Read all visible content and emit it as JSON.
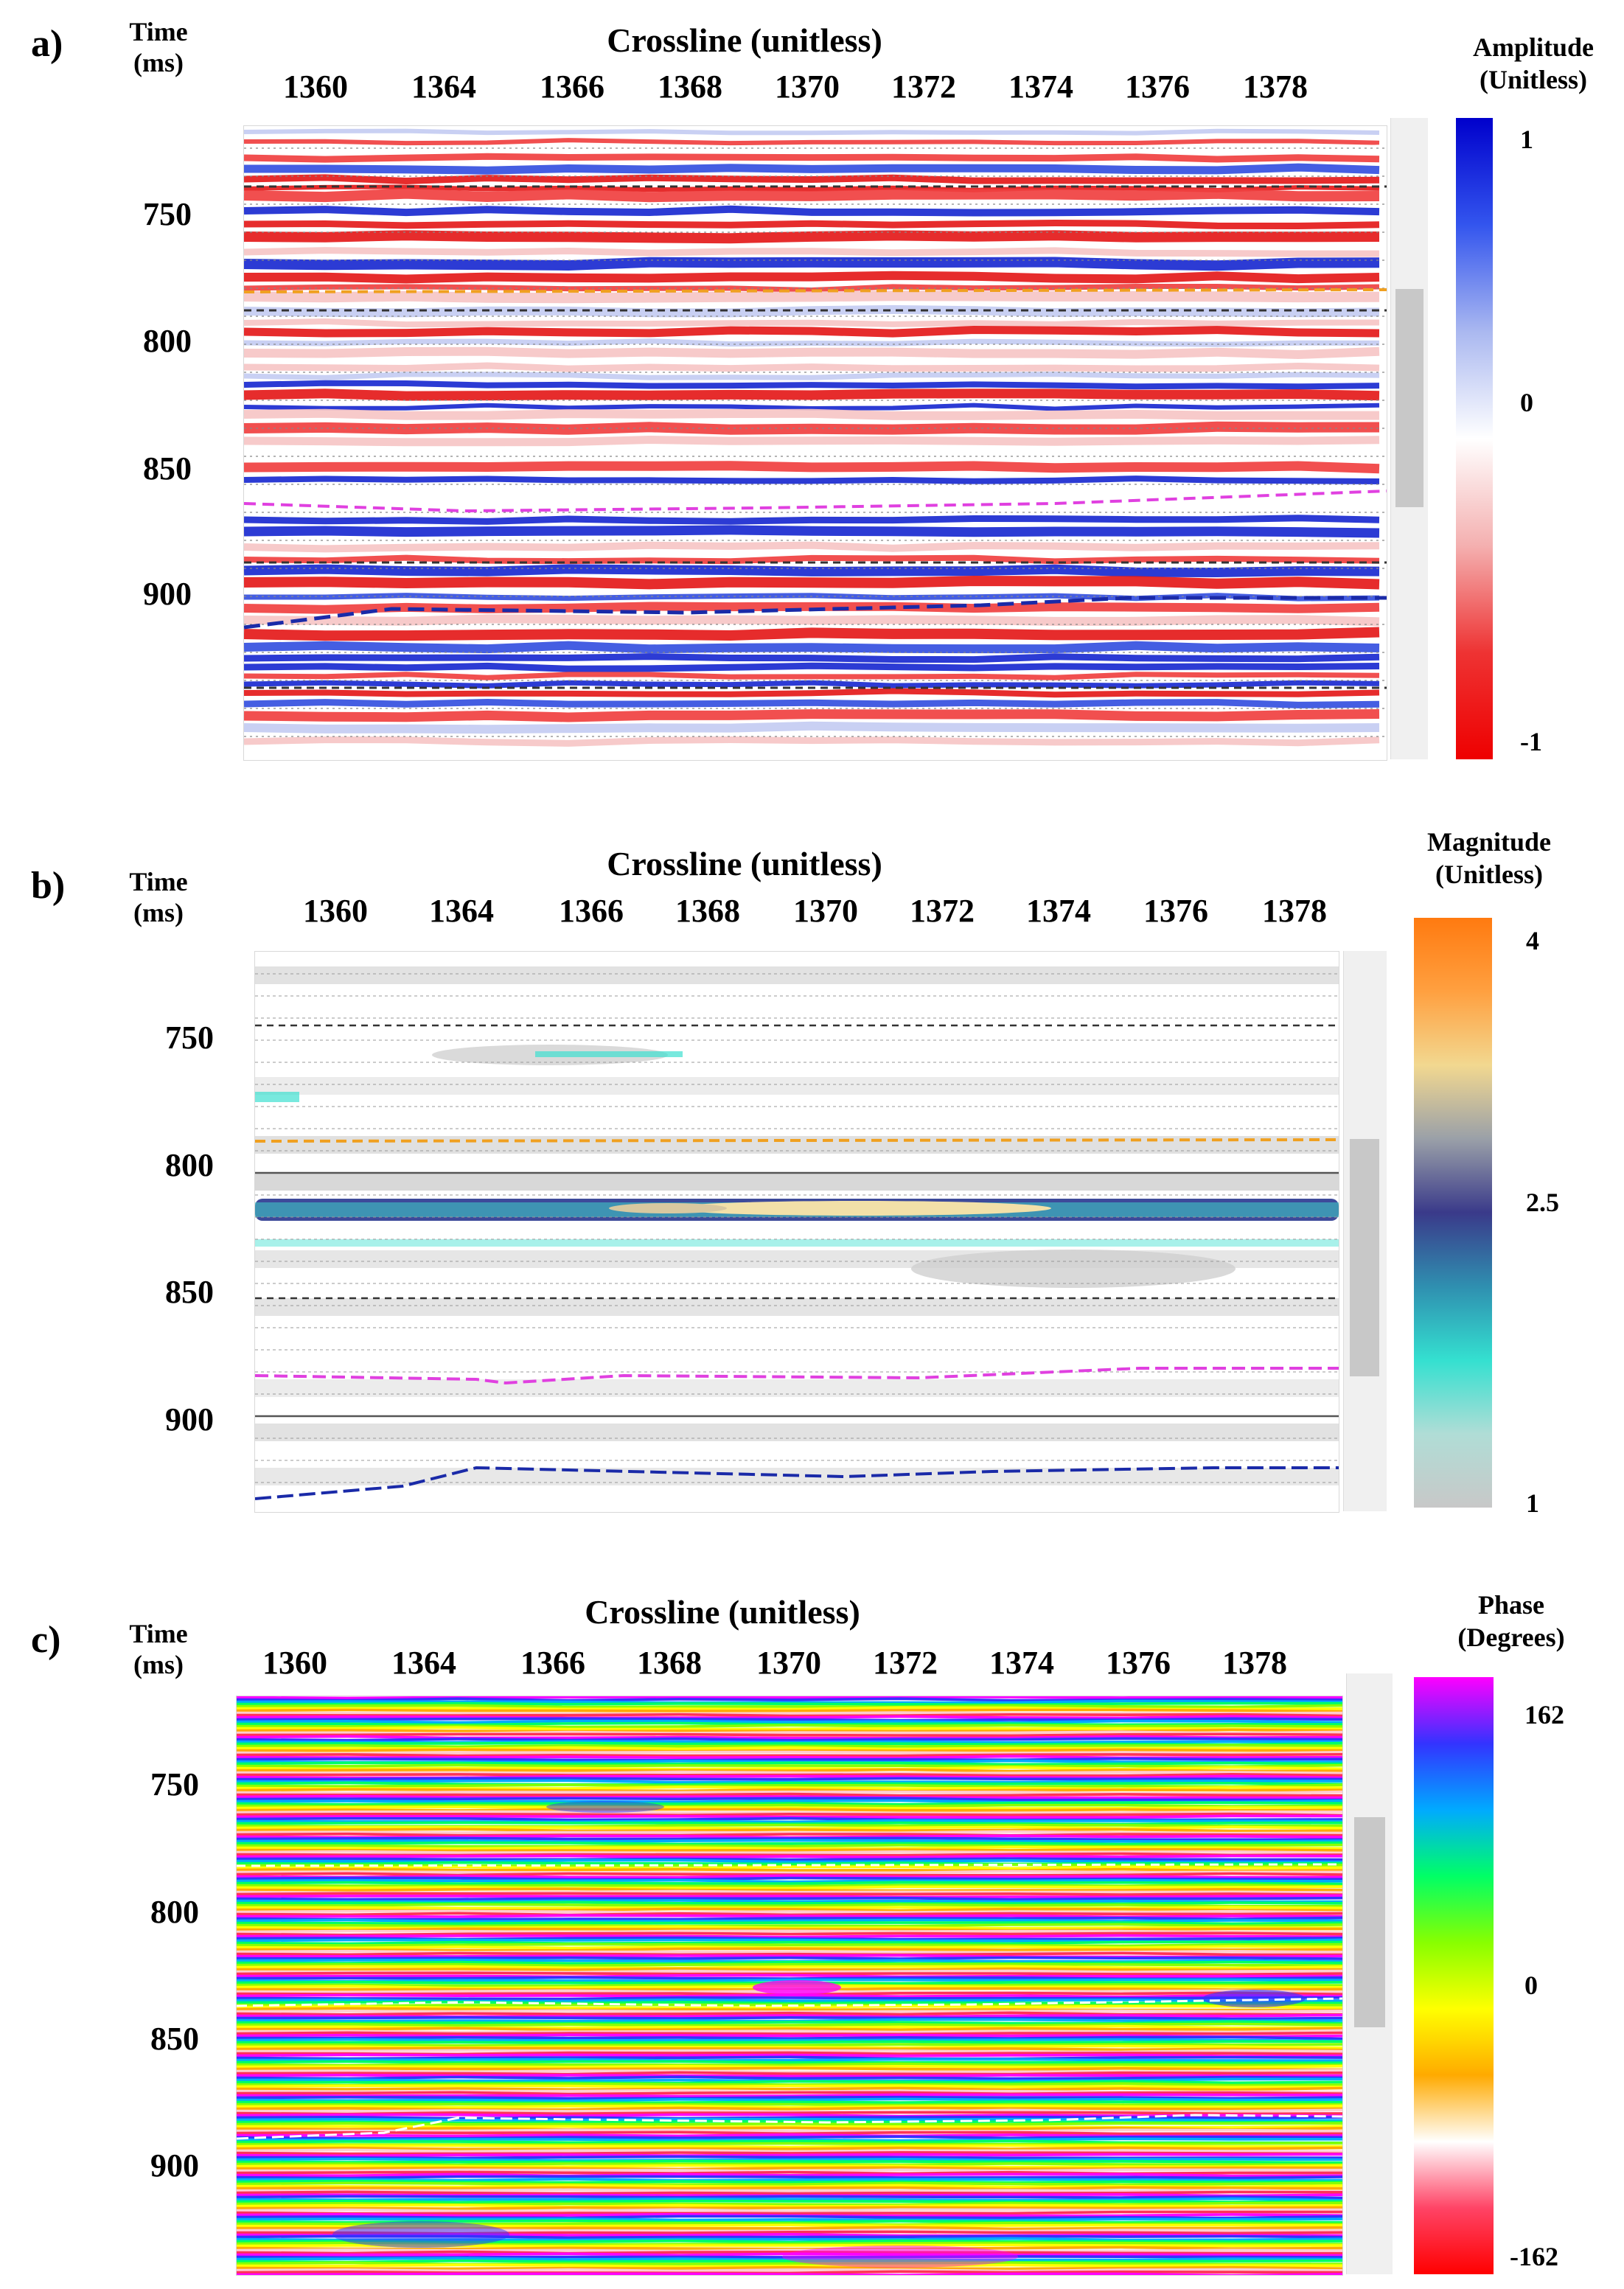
{
  "figure": {
    "panels": [
      {
        "id": "a",
        "label": "a)",
        "time_label_line1": "Time",
        "time_label_line2": "(ms)",
        "x_title": "Crossline (unitless)",
        "x_ticks": [
          "1360",
          "1364",
          "1366",
          "1368",
          "1370",
          "1372",
          "1374",
          "1376",
          "1378"
        ],
        "y_ticks": [
          "750",
          "800",
          "850",
          "900"
        ],
        "cb_title_line1": "Amplitude",
        "cb_title_line2": "(Unitless)",
        "cb_ticks": [
          "1",
          "0",
          "-1"
        ],
        "colormap": [
          "#0000cc",
          "#3355ee",
          "#aab8f0",
          "#ffffff",
          "#f4b0b0",
          "#ee3333",
          "#ee0000"
        ]
      },
      {
        "id": "b",
        "label": "b)",
        "time_label_line1": "Time",
        "time_label_line2": "(ms)",
        "x_title": "Crossline (unitless)",
        "x_ticks": [
          "1360",
          "1364",
          "1366",
          "1368",
          "1370",
          "1372",
          "1374",
          "1376",
          "1378"
        ],
        "y_ticks": [
          "750",
          "800",
          "850",
          "900"
        ],
        "cb_title_line1": "Magnitude",
        "cb_title_line2": "(Unitless)",
        "cb_ticks": [
          "4",
          "2.5",
          "1"
        ],
        "colormap": [
          "#ff7a10",
          "#ffa040",
          "#f2d890",
          "#9aa0a8",
          "#3a3a8a",
          "#2f8fb0",
          "#34e0d0",
          "#b0ddd6",
          "#c8c8c8"
        ]
      },
      {
        "id": "c",
        "label": "c)",
        "time_label_line1": "Time",
        "time_label_line2": "(ms)",
        "x_title": "Crossline (unitless)",
        "x_ticks": [
          "1360",
          "1364",
          "1366",
          "1368",
          "1370",
          "1372",
          "1374",
          "1376",
          "1378"
        ],
        "y_ticks": [
          "750",
          "800",
          "850",
          "900"
        ],
        "cb_title_line1": "Phase",
        "cb_title_line2": "(Degrees)",
        "cb_ticks": [
          "162",
          "0",
          "-162"
        ],
        "colormap": [
          "#ff00ff",
          "#3333ff",
          "#00aaff",
          "#00ff66",
          "#88ff00",
          "#ffff00",
          "#ffaa00",
          "#ffffff",
          "#ff4466",
          "#ff0000"
        ]
      }
    ],
    "horizon_colors": {
      "orange": "#f0a020",
      "magenta": "#e040e0",
      "blue": "#1a2aa8",
      "black": "#333333"
    }
  }
}
